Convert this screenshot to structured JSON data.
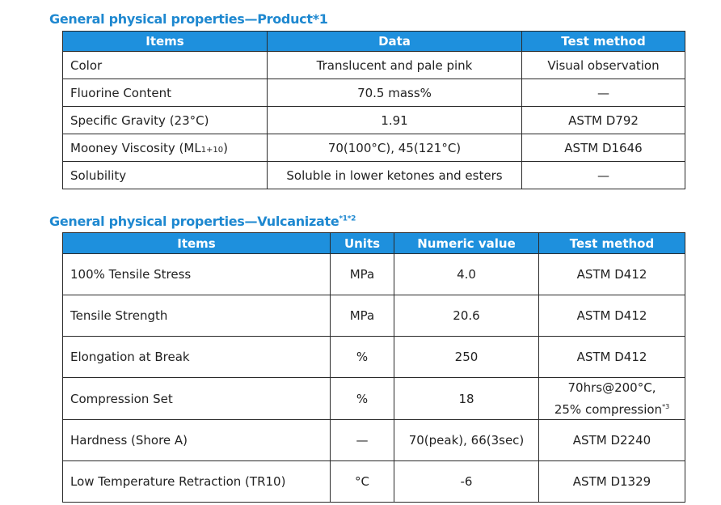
{
  "product": {
    "title": "General physical properties—Product*1",
    "headers": [
      "Items",
      "Data",
      "Test method"
    ],
    "rows": [
      {
        "item": "Color",
        "data": "Translucent and pale pink",
        "method": "Visual observation"
      },
      {
        "item": "Fluorine Content",
        "data": "70.5 mass%",
        "method": "—"
      },
      {
        "item": "Specific Gravity (23°C)",
        "data": "1.91",
        "method": "ASTM D792"
      },
      {
        "item_main": "Mooney Viscosity (ML",
        "item_sub": "1+10",
        "item_end": ")",
        "data": "70(100°C), 45(121°C)",
        "method": "ASTM D1646"
      },
      {
        "item": "Solubility",
        "data": "Soluble in lower ketones and esters",
        "method": "—"
      }
    ]
  },
  "vulcanizate": {
    "title": "General physical properties—Vulcanizate",
    "title_note": "*1*2",
    "headers": [
      "Items",
      "Units",
      "Numeric value",
      "Test method"
    ],
    "rows": [
      {
        "item": "100% Tensile Stress",
        "unit": "MPa",
        "value": "4.0",
        "method": "ASTM D412"
      },
      {
        "item": "Tensile Strength",
        "unit": "MPa",
        "value": "20.6",
        "method": "ASTM D412"
      },
      {
        "item": "Elongation at Break",
        "unit": "%",
        "value": "250",
        "method": "ASTM D412"
      },
      {
        "item": "Compression Set",
        "unit": "%",
        "value": "18",
        "method_line1": "70hrs@200°C,",
        "method_line2": "25% compression",
        "method_note": "*3"
      },
      {
        "item": "Hardness (Shore A)",
        "unit": "—",
        "value": "70(peak), 66(3sec)",
        "method": "ASTM D2240"
      },
      {
        "item": "Low Temperature Retraction (TR10)",
        "unit": "°C",
        "value": "-6",
        "method": "ASTM D1329"
      }
    ]
  },
  "colors": {
    "header_bg": "#1e90dd",
    "title_text": "#1e88d0",
    "border": "#2a2a2a"
  }
}
